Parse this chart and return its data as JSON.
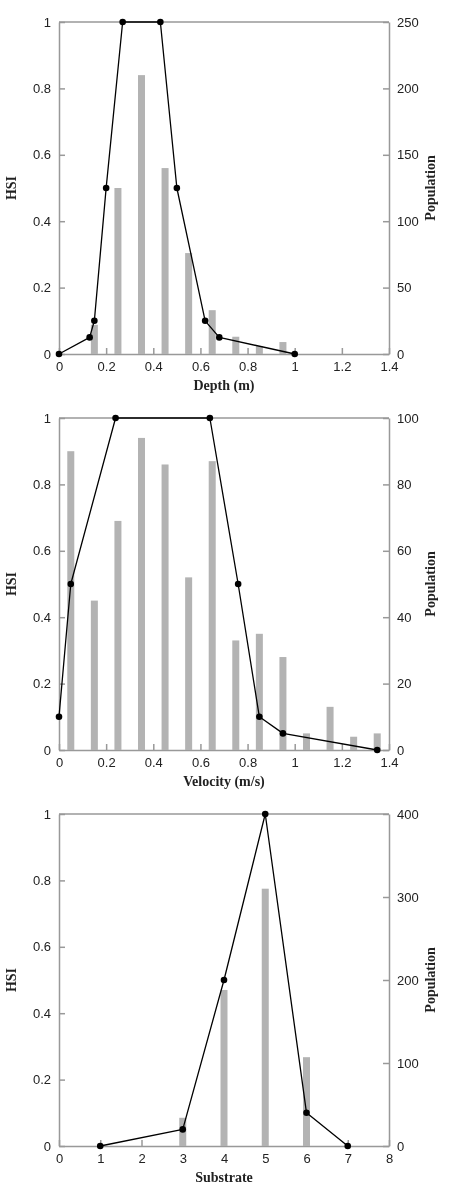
{
  "chart_data": [
    {
      "type": "line",
      "xlabel": "Depth (m)",
      "ylabel": "HSI",
      "y2label": "Population",
      "xlim": [
        0,
        1.4
      ],
      "xticks": [
        0,
        0.2,
        0.4,
        0.6,
        0.8,
        1,
        1.2,
        1.4
      ],
      "ylim": [
        0,
        1
      ],
      "yticks": [
        0,
        0.2,
        0.4,
        0.6,
        0.8,
        1
      ],
      "y2lim": [
        0,
        250
      ],
      "y2ticks": [
        0,
        50,
        100,
        150,
        200,
        250
      ],
      "marker": "circle",
      "series": [
        {
          "type": "bar",
          "axis": "y2",
          "color": "#b3b3b3",
          "x": [
            0.15,
            0.25,
            0.35,
            0.45,
            0.55,
            0.65,
            0.75,
            0.85,
            0.95
          ],
          "values": [
            22,
            125,
            210,
            140,
            76,
            33,
            13,
            6,
            9
          ]
        },
        {
          "color": "#000000",
          "x": [
            0,
            0.13,
            0.15,
            0.2,
            0.27,
            0.43,
            0.5,
            0.62,
            0.68,
            1
          ],
          "values": [
            0,
            0.05,
            0.1,
            0.5,
            1,
            1,
            0.5,
            0.1,
            0.05,
            0
          ]
        }
      ]
    },
    {
      "type": "line",
      "xlabel": "Velocity (m/s)",
      "ylabel": "HSI",
      "y2label": "Population",
      "xlim": [
        0,
        1.4
      ],
      "xticks": [
        0,
        0.2,
        0.4,
        0.6,
        0.8,
        1,
        1.2,
        1.4
      ],
      "ylim": [
        0,
        1
      ],
      "yticks": [
        0,
        0.2,
        0.4,
        0.6,
        0.8,
        1
      ],
      "y2lim": [
        0,
        100
      ],
      "y2ticks": [
        0,
        20,
        40,
        60,
        80,
        100
      ],
      "marker": "circle",
      "series": [
        {
          "type": "bar",
          "axis": "y2",
          "color": "#b3b3b3",
          "x": [
            0.05,
            0.15,
            0.25,
            0.35,
            0.45,
            0.55,
            0.65,
            0.75,
            0.85,
            0.95,
            1.05,
            1.15,
            1.25,
            1.35
          ],
          "values": [
            90,
            45,
            69,
            94,
            86,
            52,
            87,
            33,
            35,
            28,
            5,
            13,
            4,
            5
          ]
        },
        {
          "color": "#000000",
          "x": [
            0,
            0.05,
            0.24,
            0.64,
            0.76,
            0.85,
            0.95,
            1.35
          ],
          "values": [
            0.1,
            0.5,
            1,
            1,
            0.5,
            0.1,
            0.05,
            0
          ]
        }
      ]
    },
    {
      "type": "line",
      "xlabel": "Substrate",
      "ylabel": "HSI",
      "y2label": "Population",
      "xlim": [
        0,
        8
      ],
      "xticks": [
        0,
        1,
        2,
        3,
        4,
        5,
        6,
        7,
        8
      ],
      "ylim": [
        0,
        1
      ],
      "yticks": [
        0,
        0.2,
        0.4,
        0.6,
        0.8,
        1
      ],
      "y2lim": [
        0,
        400
      ],
      "y2ticks": [
        0,
        100,
        200,
        300,
        400
      ],
      "marker": "circle",
      "series": [
        {
          "type": "bar",
          "axis": "y2",
          "color": "#b3b3b3",
          "x": [
            3,
            4,
            5,
            6
          ],
          "values": [
            34,
            188,
            310,
            107
          ]
        },
        {
          "color": "#000000",
          "x": [
            1,
            3,
            4,
            5,
            6,
            7
          ],
          "values": [
            0,
            0.05,
            0.5,
            1,
            0.1,
            0
          ]
        }
      ]
    }
  ]
}
